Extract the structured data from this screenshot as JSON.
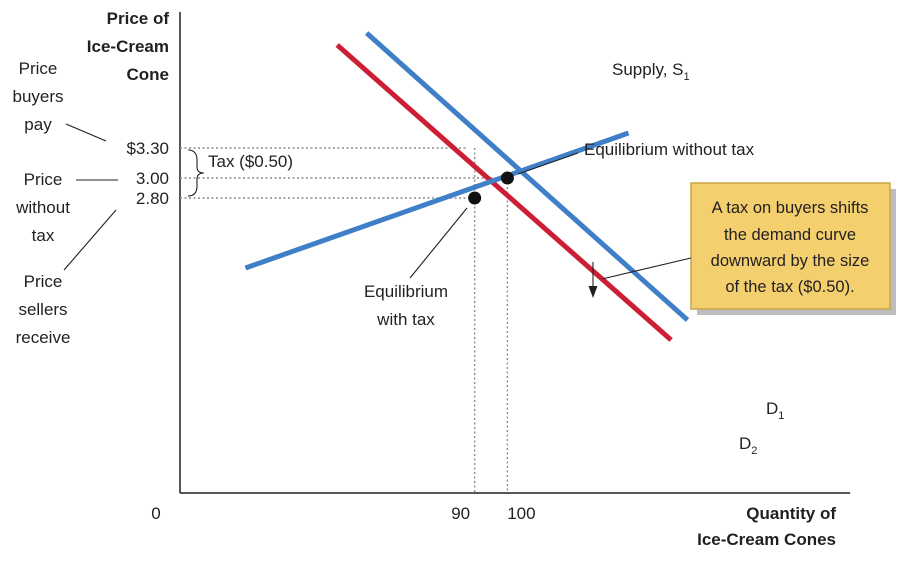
{
  "chart_data": {
    "type": "line",
    "title": "",
    "ylabel": "Price of Ice-Cream Cone",
    "ylabel_lines": [
      "Price of",
      "Ice-Cream",
      "Cone"
    ],
    "xlabel": "Quantity of Ice-Cream Cones",
    "xlabel_lines": [
      "Quantity of",
      "Ice-Cream Cones"
    ],
    "origin_label": "0",
    "x_ticks": [
      {
        "value": 90,
        "label": "90"
      },
      {
        "value": 100,
        "label": "100"
      }
    ],
    "y_ticks": [
      {
        "value": 3.3,
        "label": "$3.30"
      },
      {
        "value": 3.0,
        "label": "3.00"
      },
      {
        "value": 2.8,
        "label": "2.80"
      }
    ],
    "series": [
      {
        "name": "Supply, S",
        "label_main": "Supply, ",
        "label_sym": "S",
        "label_sub": "1",
        "color": "#3f7fc8",
        "x": [
          20,
          137
        ],
        "y": [
          2.1,
          3.45
        ]
      },
      {
        "name": "D1",
        "label_sym": "D",
        "label_sub": "1",
        "color": "#3f7fc8",
        "x": [
          57,
          155
        ],
        "y": [
          4.45,
          1.58
        ]
      },
      {
        "name": "D2",
        "label_sym": "D",
        "label_sub": "2",
        "color": "#cc1e35",
        "x": [
          48,
          150
        ],
        "y": [
          4.33,
          1.38
        ]
      }
    ],
    "points": [
      {
        "name": "equilibrium-without-tax",
        "x": 100,
        "y": 3.0
      },
      {
        "name": "equilibrium-with-tax",
        "x": 90,
        "y": 2.8
      }
    ],
    "annotations": {
      "tax_bracket": "Tax ($0.50)",
      "eq_without_tax": "Equilibrium without tax",
      "eq_with_tax": [
        "Equilibrium",
        "with tax"
      ],
      "price_buyers_pay": [
        "Price",
        "buyers",
        "pay"
      ],
      "price_without_tax": [
        "Price",
        "without",
        "tax"
      ],
      "price_sellers_receive": [
        "Price",
        "sellers",
        "receive"
      ],
      "callout": [
        "A tax on buyers shifts",
        "the demand curve",
        "downward by the size",
        "of the tax ($0.50)."
      ]
    },
    "colors": {
      "supply": "#3f7fc8",
      "demand_original": "#3f7fc8",
      "demand_shifted": "#cc1e35",
      "callout_fill": "#f3cf6e",
      "callout_border": "#c8a548"
    },
    "xlim": [
      0,
      160
    ],
    "ylim": [
      1.0,
      4.7
    ],
    "grid": false
  }
}
